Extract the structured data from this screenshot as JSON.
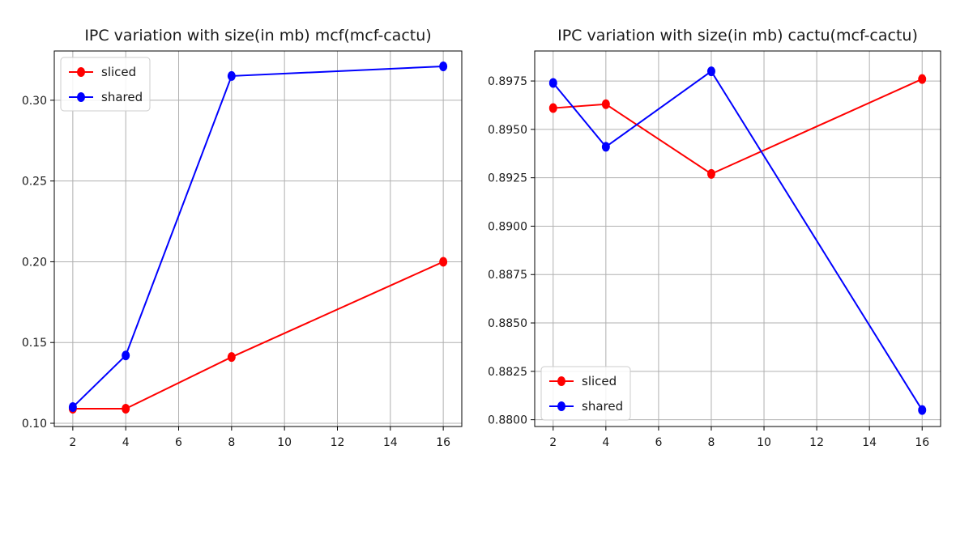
{
  "chart_data": [
    {
      "type": "line",
      "title": "IPC variation with size(in mb) mcf(mcf-cactu)",
      "xlabel": "",
      "ylabel": "",
      "x": [
        2,
        4,
        8,
        16
      ],
      "xlim": [
        1.3,
        16.7
      ],
      "ylim": [
        0.098,
        0.3305
      ],
      "xticks": [
        2,
        4,
        6,
        8,
        10,
        12,
        14,
        16
      ],
      "yticks": [
        0.1,
        0.15,
        0.2,
        0.25,
        0.3
      ],
      "ytick_labels": [
        "0.10",
        "0.15",
        "0.20",
        "0.25",
        "0.30"
      ],
      "grid": true,
      "legend_position": "top-left",
      "series": [
        {
          "name": "sliced",
          "color": "#ff0000",
          "values": [
            0.109,
            0.109,
            0.141,
            0.2
          ]
        },
        {
          "name": "shared",
          "color": "#0000ff",
          "values": [
            0.11,
            0.142,
            0.315,
            0.321
          ]
        }
      ]
    },
    {
      "type": "line",
      "title": "IPC variation with size(in mb) cactu(mcf-cactu)",
      "xlabel": "",
      "ylabel": "",
      "x": [
        2,
        4,
        8,
        16
      ],
      "xlim": [
        1.3,
        16.7
      ],
      "ylim": [
        0.87965,
        0.89905
      ],
      "xticks": [
        2,
        4,
        6,
        8,
        10,
        12,
        14,
        16
      ],
      "yticks": [
        0.88,
        0.8825,
        0.885,
        0.8875,
        0.89,
        0.8925,
        0.895,
        0.8975
      ],
      "ytick_labels": [
        "0.8800",
        "0.8825",
        "0.8850",
        "0.8875",
        "0.8900",
        "0.8925",
        "0.8950",
        "0.8975"
      ],
      "grid": true,
      "legend_position": "bottom-left",
      "series": [
        {
          "name": "sliced",
          "color": "#ff0000",
          "values": [
            0.8961,
            0.8963,
            0.8927,
            0.8976
          ]
        },
        {
          "name": "shared",
          "color": "#0000ff",
          "values": [
            0.8974,
            0.8941,
            0.898,
            0.8805
          ]
        }
      ]
    }
  ]
}
